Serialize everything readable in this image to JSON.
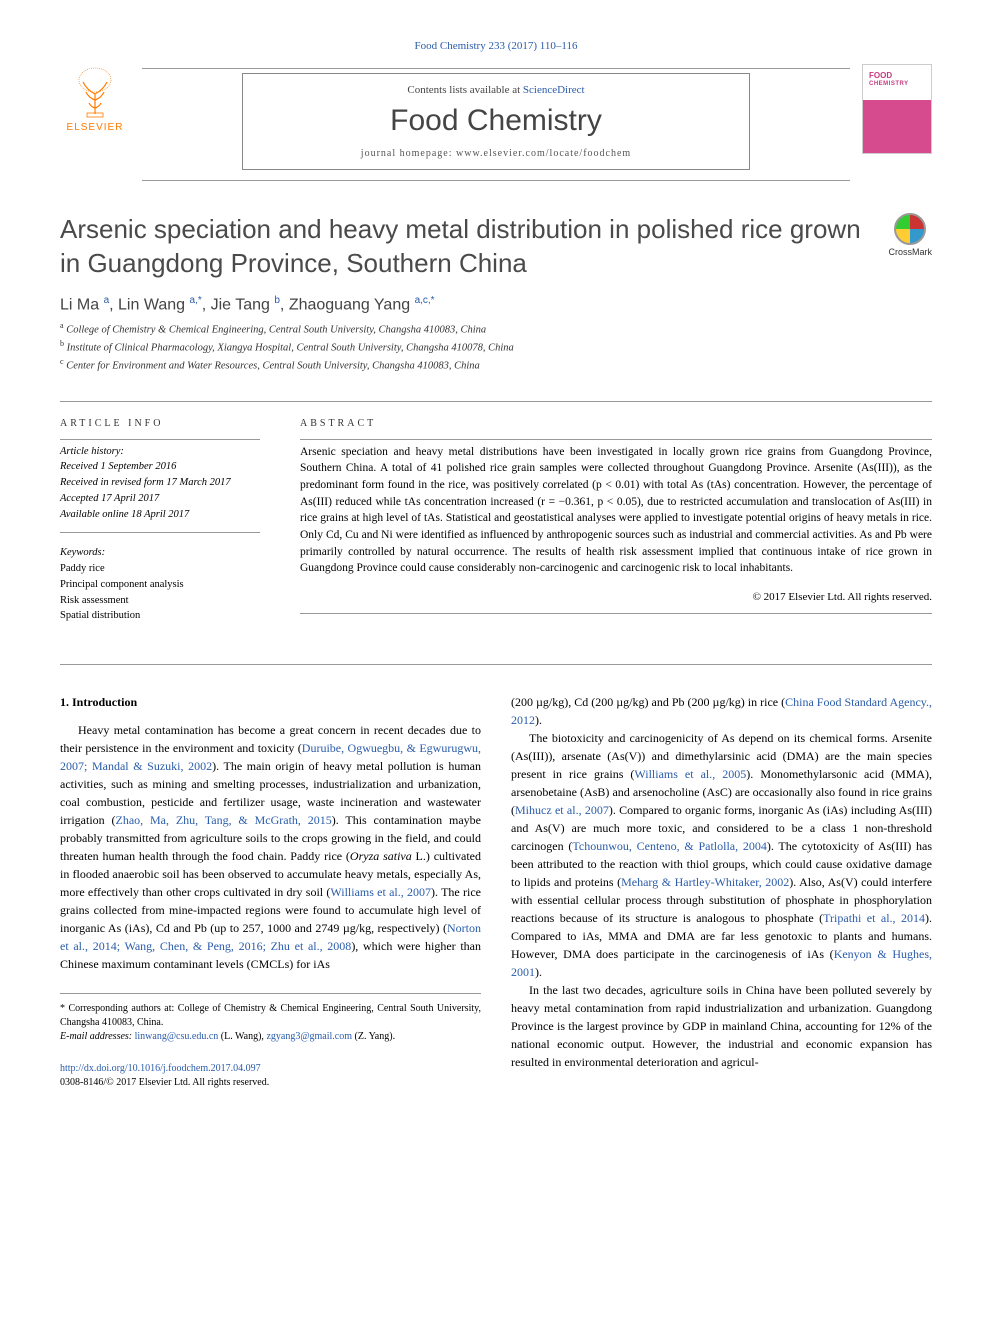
{
  "header": {
    "citation": "Food Chemistry 233 (2017) 110–116",
    "contents_prefix": "Contents lists available at ",
    "contents_link": "ScienceDirect",
    "journal": "Food Chemistry",
    "homepage_prefix": "journal homepage: ",
    "homepage": "www.elsevier.com/locate/foodchem",
    "publisher": "ELSEVIER"
  },
  "crossmark": "CrossMark",
  "title": "Arsenic speciation and heavy metal distribution in polished rice grown in Guangdong Province, Southern China",
  "authors_html": "Li Ma <sup>a</sup>, Lin Wang <sup>a,*</sup>, Jie Tang <sup>b</sup>, Zhaoguang Yang <sup>a,c,*</sup>",
  "affiliations": [
    "a College of Chemistry & Chemical Engineering, Central South University, Changsha 410083, China",
    "b Institute of Clinical Pharmacology, Xiangya Hospital, Central South University, Changsha 410078, China",
    "c Center for Environment and Water Resources, Central South University, Changsha 410083, China"
  ],
  "article_info": {
    "label": "ARTICLE INFO",
    "history_label": "Article history:",
    "history": [
      "Received 1 September 2016",
      "Received in revised form 17 March 2017",
      "Accepted 17 April 2017",
      "Available online 18 April 2017"
    ],
    "keywords_label": "Keywords:",
    "keywords": [
      "Paddy rice",
      "Principal component analysis",
      "Risk assessment",
      "Spatial distribution"
    ]
  },
  "abstract": {
    "label": "ABSTRACT",
    "text": "Arsenic speciation and heavy metal distributions have been investigated in locally grown rice grains from Guangdong Province, Southern China. A total of 41 polished rice grain samples were collected throughout Guangdong Province. Arsenite (As(III)), as the predominant form found in the rice, was positively correlated (p < 0.01) with total As (tAs) concentration. However, the percentage of As(III) reduced while tAs concentration increased (r = −0.361, p < 0.05), due to restricted accumulation and translocation of As(III) in rice grains at high level of tAs. Statistical and geostatistical analyses were applied to investigate potential origins of heavy metals in rice. Only Cd, Cu and Ni were identified as influenced by anthropogenic sources such as industrial and commercial activities. As and Pb were primarily controlled by natural occurrence. The results of health risk assessment implied that continuous intake of rice grown in Guangdong Province could cause considerably non-carcinogenic and carcinogenic risk to local inhabitants.",
    "copyright": "© 2017 Elsevier Ltd. All rights reserved."
  },
  "body": {
    "section_heading": "1. Introduction",
    "col1": "Heavy metal contamination has become a great concern in recent decades due to their persistence in the environment and toxicity (<span class=\"ref-link\">Duruibe, Ogwuegbu, & Egwurugwu, 2007; Mandal & Suzuki, 2002</span>). The main origin of heavy metal pollution is human activities, such as mining and smelting processes, industrialization and urbanization, coal combustion, pesticide and fertilizer usage, waste incineration and wastewater irrigation (<span class=\"ref-link\">Zhao, Ma, Zhu, Tang, & McGrath, 2015</span>). This contamination maybe probably transmitted from agriculture soils to the crops growing in the field, and could threaten human health through the food chain. Paddy rice (<i>Oryza sativa</i> L.) cultivated in flooded anaerobic soil has been observed to accumulate heavy metals, especially As, more effectively than other crops cultivated in dry soil (<span class=\"ref-link\">Williams et al., 2007</span>). The rice grains collected from mine-impacted regions were found to accumulate high level of inorganic As (iAs), Cd and Pb (up to 257, 1000 and 2749 µg/kg, respectively) (<span class=\"ref-link\">Norton et al., 2014; Wang, Chen, & Peng, 2016; Zhu et al., 2008</span>), which were higher than Chinese maximum contaminant levels (CMCLs) for iAs",
    "col2_p1": "(200 µg/kg), Cd (200 µg/kg) and Pb (200 µg/kg) in rice (<span class=\"ref-link\">China Food Standard Agency., 2012</span>).",
    "col2_p2": "The biotoxicity and carcinogenicity of As depend on its chemical forms. Arsenite (As(III)), arsenate (As(V)) and dimethylarsinic acid (DMA) are the main species present in rice grains (<span class=\"ref-link\">Williams et al., 2005</span>). Monomethylarsonic acid (MMA), arsenobetaine (AsB) and arsenocholine (AsC) are occasionally also found in rice grains (<span class=\"ref-link\">Mihucz et al., 2007</span>). Compared to organic forms, inorganic As (iAs) including As(III) and As(V) are much more toxic, and considered to be a class 1 non-threshold carcinogen (<span class=\"ref-link\">Tchounwou, Centeno, & Patlolla, 2004</span>). The cytotoxicity of As(III) has been attributed to the reaction with thiol groups, which could cause oxidative damage to lipids and proteins (<span class=\"ref-link\">Meharg & Hartley-Whitaker, 2002</span>). Also, As(V) could interfere with essential cellular process through substitution of phosphate in phosphorylation reactions because of its structure is analogous to phosphate (<span class=\"ref-link\">Tripathi et al., 2014</span>). Compared to iAs, MMA and DMA are far less genotoxic to plants and humans. However, DMA does participate in the carcinogenesis of iAs (<span class=\"ref-link\">Kenyon & Hughes, 2001</span>).",
    "col2_p3": "In the last two decades, agriculture soils in China have been polluted severely by heavy metal contamination from rapid industrialization and urbanization. Guangdong Province is the largest province by GDP in mainland China, accounting for 12% of the national economic output. However, the industrial and economic expansion has resulted in environmental deterioration and agricul-"
  },
  "footnotes": {
    "corresponding": "* Corresponding authors at: College of Chemistry & Chemical Engineering, Central South University, Changsha 410083, China.",
    "emails_label": "E-mail addresses:",
    "email1": "linwang@csu.edu.cn",
    "email1_name": " (L. Wang), ",
    "email2": "zgyang3@gmail.com",
    "email2_name": " (Z. Yang)."
  },
  "doi": {
    "url": "http://dx.doi.org/10.1016/j.foodchem.2017.04.097",
    "issn": "0308-8146/© 2017 Elsevier Ltd. All rights reserved."
  }
}
